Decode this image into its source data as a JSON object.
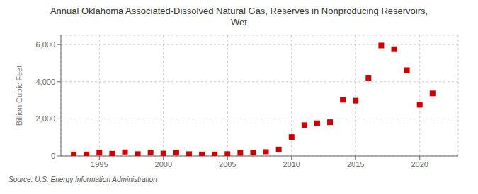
{
  "chart_data": {
    "type": "scatter",
    "title": "Annual Oklahoma Associated-Dissolved Natural Gas, Reserves in Nonproducing Reservoirs,\nWet",
    "ylabel": "Billion Cubic Feet",
    "annotations": [
      "Source: U.S. Energy Information Administration"
    ],
    "x": [
      1993,
      1994,
      1995,
      1996,
      1997,
      1998,
      1999,
      2000,
      2001,
      2002,
      2003,
      2004,
      2005,
      2006,
      2007,
      2008,
      2009,
      2010,
      2011,
      2012,
      2013,
      2014,
      2015,
      2016,
      2017,
      2018,
      2019,
      2020,
      2021
    ],
    "values": [
      80,
      80,
      180,
      120,
      200,
      100,
      180,
      130,
      180,
      100,
      80,
      80,
      100,
      170,
      180,
      210,
      350,
      1020,
      1660,
      1760,
      1820,
      3030,
      2980,
      4180,
      5950,
      5750,
      4620,
      2760,
      3370
    ],
    "color": "#cc0000",
    "marker": "square",
    "xlim": [
      1992,
      2023
    ],
    "xticks": [
      1995,
      2000,
      2005,
      2010,
      2015,
      2020
    ],
    "ylim": [
      0,
      6500
    ],
    "yticks": [
      0,
      {
        "value": 2000,
        "label": "2,000"
      },
      {
        "value": 4000,
        "label": "4,000"
      },
      {
        "value": 6000,
        "label": "6,000"
      }
    ],
    "grid": true
  }
}
